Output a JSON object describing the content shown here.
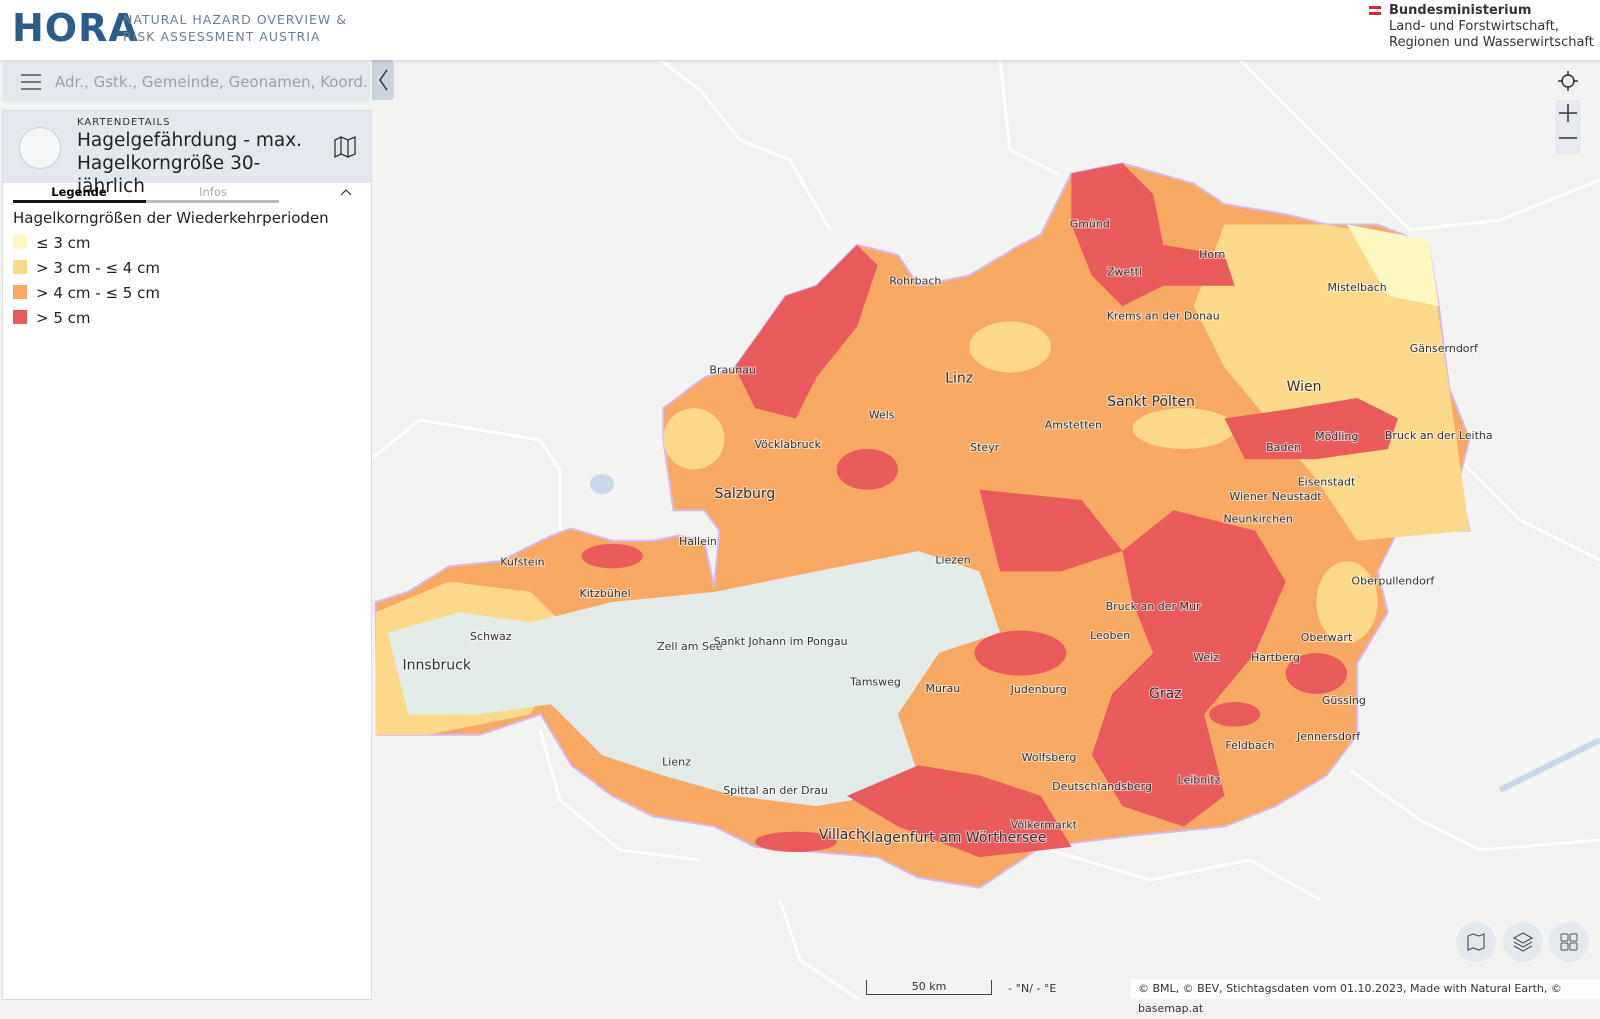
{
  "header": {
    "logo": "HORA",
    "tagline": [
      "NATURAL HAZARD OVERVIEW &",
      "RISK ASSESSMENT AUSTRIA"
    ],
    "ministry": [
      "Bundesministerium",
      "Land- und Forstwirtschaft,",
      "Regionen und Wasserwirtschaft"
    ]
  },
  "search": {
    "placeholder": "Adr., Gstk., Gemeinde, Geonamen, Koord."
  },
  "panel": {
    "kicker": "KARTENDETAILS",
    "title": "Hagelgefährdung - max. Hagelkorngröße 30-jährlich",
    "tabs": [
      "Legende",
      "Infos"
    ],
    "legend_title": "Hagelkorngrößen der Wiederkehrperioden",
    "legend": [
      {
        "label": "≤ 3 cm",
        "color": "#fff7c2"
      },
      {
        "label": "> 3 cm - ≤ 4 cm",
        "color": "#fcd98a"
      },
      {
        "label": "> 4 cm - ≤ 5 cm",
        "color": "#f7a863"
      },
      {
        "label": "> 5 cm",
        "color": "#e95a5a"
      }
    ]
  },
  "map": {
    "labels": [
      "Linz",
      "Wien",
      "Sankt Pölten",
      "Salzburg",
      "Innsbruck",
      "Graz",
      "Klagenfurt am Wörthersee",
      "Villach",
      "Eisenstadt",
      "Hallein",
      "Braunau",
      "Zwettl",
      "Krems an der Donau",
      "Wels",
      "Steyr",
      "Leoben",
      "Bruck an der Mur",
      "Kitzbühel",
      "Lienz",
      "Spittal an der Drau",
      "Wolfsberg",
      "Hartberg",
      "Oberwart",
      "Gänserndorf",
      "Mödling",
      "Baden",
      "Wiener Neustadt",
      "Mistelbach",
      "Horn",
      "Amstetten",
      "Schwaz",
      "Kufstein",
      "Zell am See",
      "Sankt Johann im Pongau",
      "Liezen",
      "Judenburg",
      "Weiz",
      "Feldbach",
      "Güssing",
      "Leibnitz",
      "Deutschlandsberg",
      "Rohrbach",
      "Gmünd",
      "Vöcklabruck",
      "Tamsweg",
      "Murau",
      "Völkermarkt",
      "Jennersdorf",
      "Oberpullendorf",
      "Neunkirchen",
      "Bruck an der Leitha"
    ]
  },
  "footer": {
    "scale": "50 km",
    "coords": "- °N/ - °E",
    "attribution": "© BML, © BEV, Stichtagsdaten vom 01.10.2023, Made with Natural Earth, © basemap.at"
  }
}
